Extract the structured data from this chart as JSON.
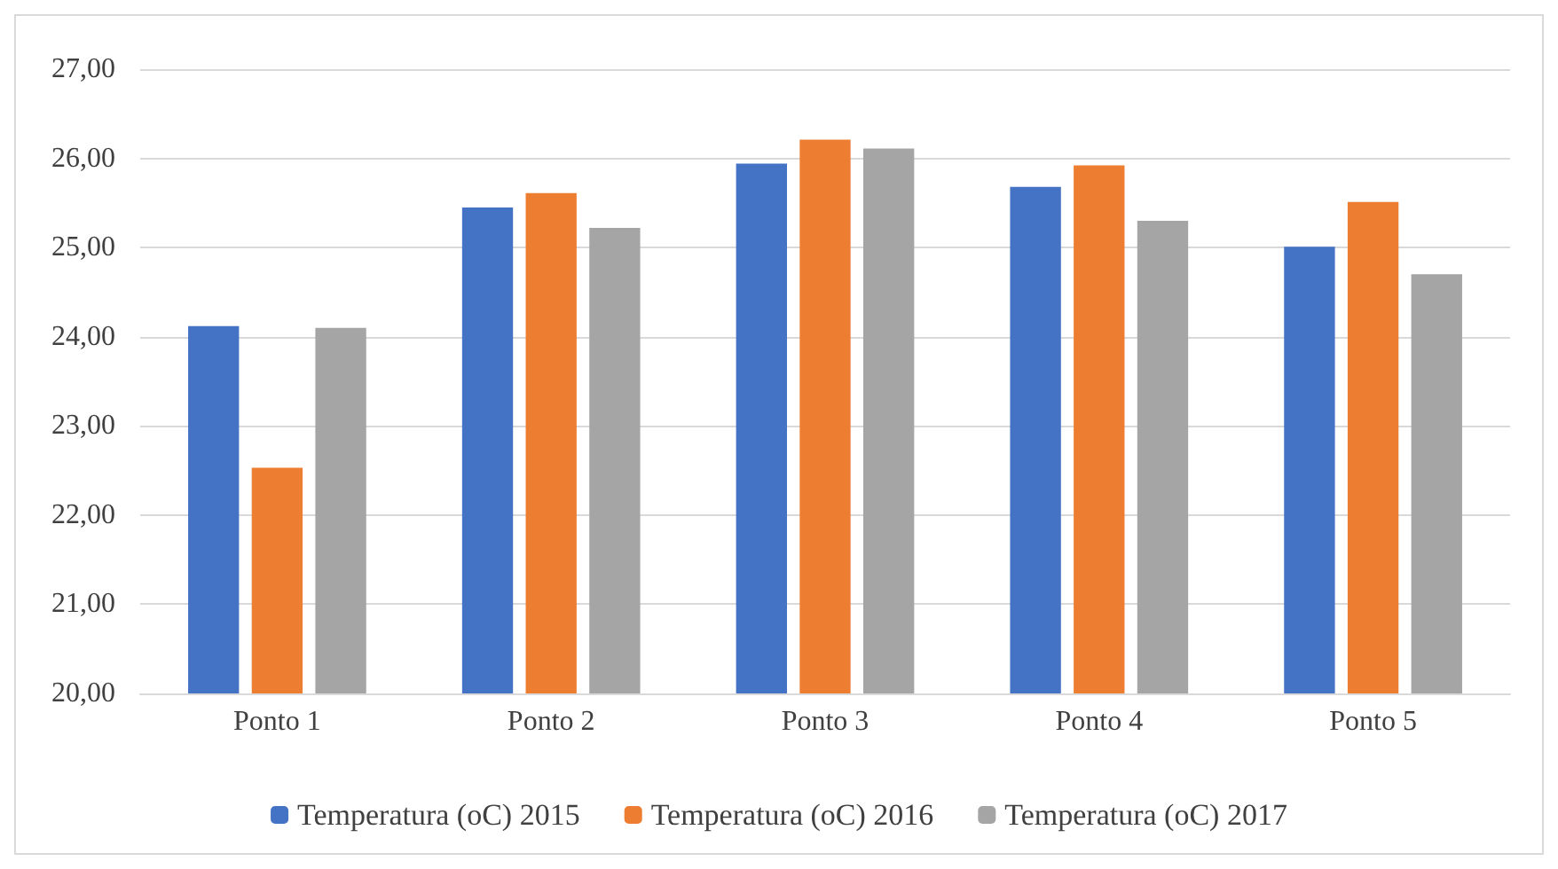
{
  "chart_data": {
    "type": "bar",
    "categories": [
      "Ponto 1",
      "Ponto 2",
      "Ponto 3",
      "Ponto 4",
      "Ponto 5"
    ],
    "series": [
      {
        "name": "Temperatura (oC) 2015",
        "color": "#4472c4",
        "values": [
          24.12,
          25.45,
          25.94,
          25.68,
          25.01
        ]
      },
      {
        "name": "Temperatura (oC) 2016",
        "color": "#ed7d31",
        "values": [
          22.53,
          25.61,
          26.21,
          25.92,
          25.51
        ]
      },
      {
        "name": "Temperatura (oC) 2017",
        "color": "#a5a5a5",
        "values": [
          24.1,
          25.22,
          26.11,
          25.3,
          24.7
        ]
      }
    ],
    "ylim": [
      20,
      27
    ],
    "yticks": [
      {
        "value": 20,
        "label": "20,00"
      },
      {
        "value": 21,
        "label": "21,00"
      },
      {
        "value": 22,
        "label": "22,00"
      },
      {
        "value": 23,
        "label": "23,00"
      },
      {
        "value": 24,
        "label": "24,00"
      },
      {
        "value": 25,
        "label": "25,00"
      },
      {
        "value": 26,
        "label": "26,00"
      },
      {
        "value": 27,
        "label": "27,00"
      }
    ],
    "grid": "y",
    "legend": "bottom"
  }
}
